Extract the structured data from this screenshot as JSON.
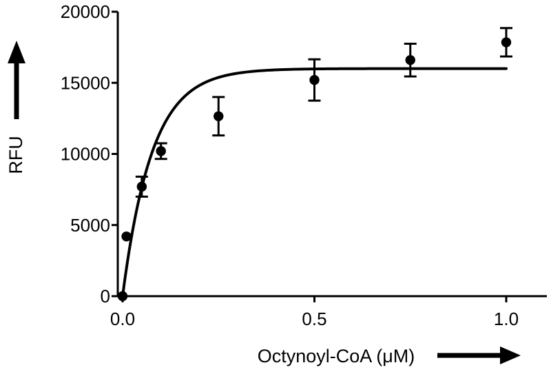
{
  "chart_data": {
    "type": "scatter",
    "title": "",
    "xlabel": "Octynoyl-CoA (μM)",
    "ylabel": "RFU",
    "xlim": [
      0,
      1.1
    ],
    "ylim": [
      0,
      20000
    ],
    "x_ticks": [
      0,
      0.5,
      1.0
    ],
    "x_tick_labels": [
      "0.0",
      "0.5",
      "1.0"
    ],
    "y_ticks": [
      0,
      5000,
      10000,
      15000,
      20000
    ],
    "y_tick_labels": [
      "0",
      "5000",
      "10000",
      "15000",
      "20000"
    ],
    "grid": false,
    "legend": false,
    "series": [
      {
        "x": [
          0,
          0.01,
          0.05,
          0.1,
          0.25,
          0.5,
          0.75,
          1.0
        ],
        "y": [
          0,
          4200,
          7700,
          10200,
          12650,
          15200,
          16600,
          17850
        ],
        "error": [
          0,
          0,
          700,
          550,
          1350,
          1450,
          1150,
          1000
        ]
      }
    ],
    "fit": {
      "model": "one-phase association",
      "plateau": 16000,
      "k": 13,
      "x_range": [
        0,
        1.0
      ]
    },
    "axis_arrows": {
      "x": true,
      "y": true
    }
  }
}
